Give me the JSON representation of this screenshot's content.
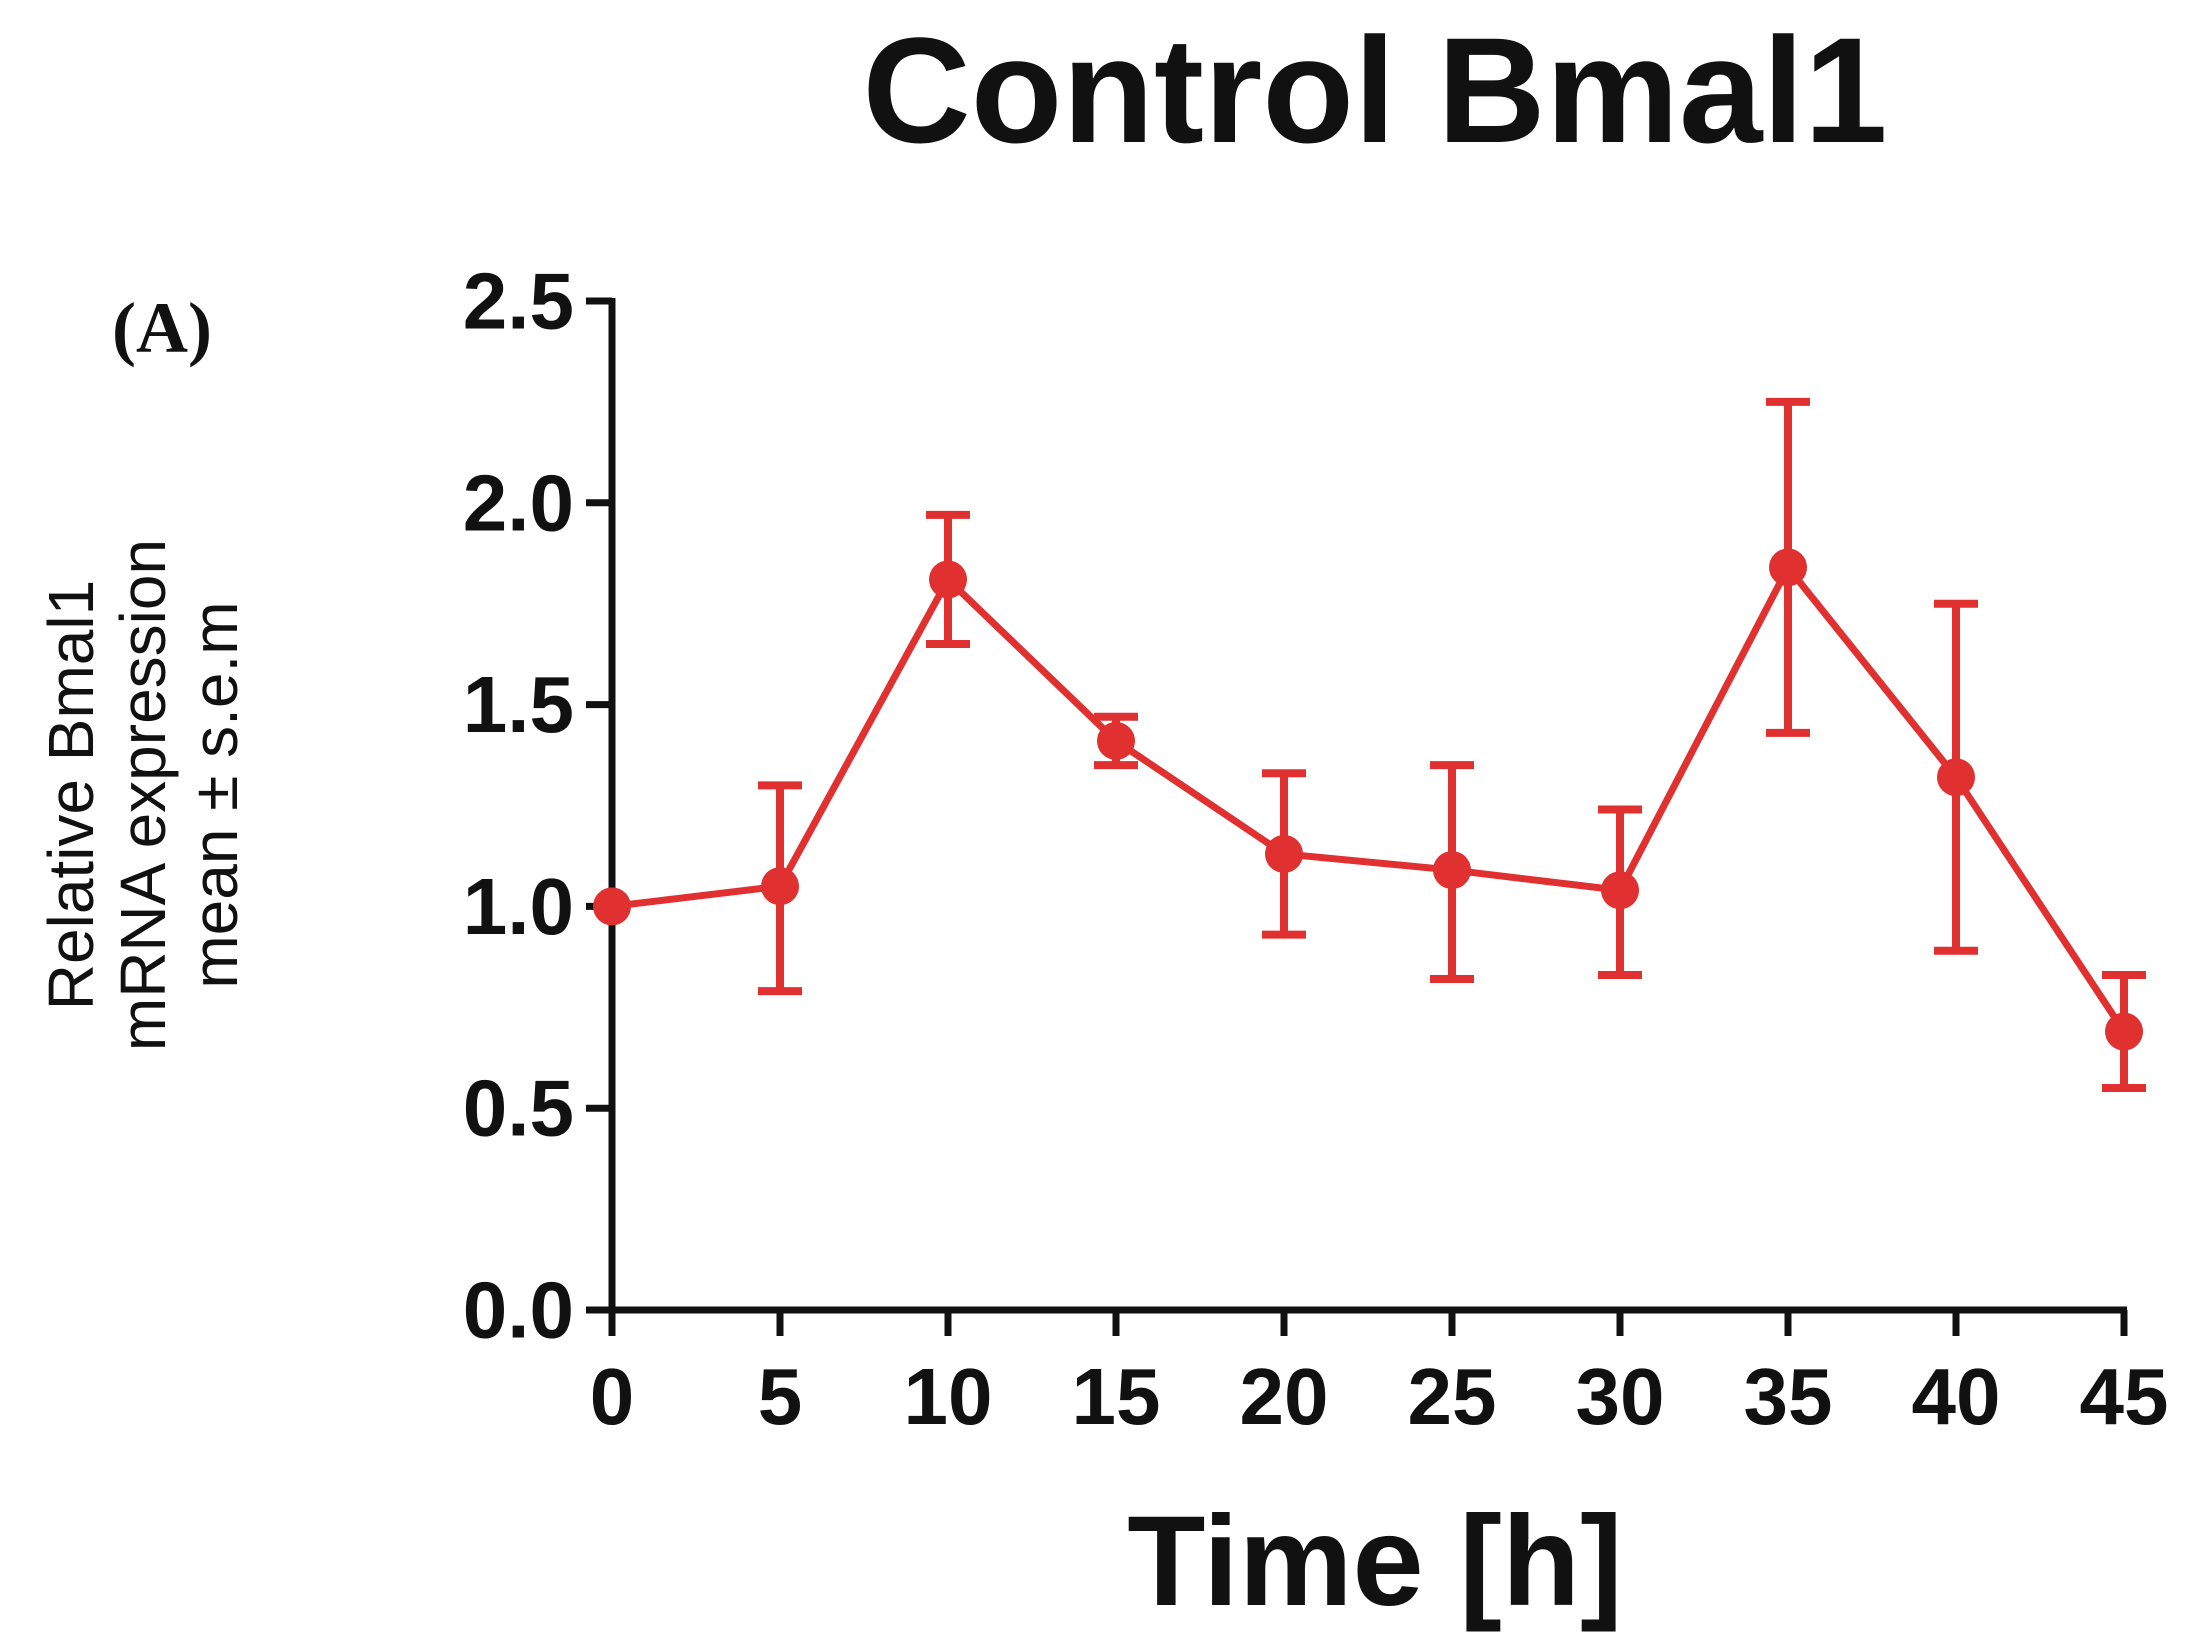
{
  "chart_data": {
    "type": "line",
    "title": "Control Bmal1",
    "panel_label": "(A)",
    "xlabel": "Time [h]",
    "ylabel_lines": [
      "Relative Bmal1",
      "mRNA expression",
      "mean ± s.e.m"
    ],
    "xlim": [
      0,
      45
    ],
    "ylim": [
      0,
      2.5
    ],
    "x_ticks": [
      0,
      5,
      10,
      15,
      20,
      25,
      30,
      35,
      40,
      45
    ],
    "x_tick_labels": [
      "0",
      "5",
      "10",
      "15",
      "20",
      "25",
      "30",
      "35",
      "40",
      "45"
    ],
    "y_ticks": [
      0,
      0.5,
      1.0,
      1.5,
      2.0,
      2.5
    ],
    "y_tick_labels": [
      "0.0",
      "0.5",
      "1.0",
      "1.5",
      "2.0",
      "2.5"
    ],
    "grid": false,
    "series": [
      {
        "name": "Control Bmal1",
        "color": "#e03030",
        "x": [
          0,
          5,
          10,
          15,
          20,
          25,
          30,
          35,
          40,
          45
        ],
        "y": [
          1.0,
          1.05,
          1.81,
          1.41,
          1.13,
          1.09,
          1.04,
          1.84,
          1.32,
          0.69
        ],
        "err_low": [
          1.0,
          0.79,
          1.65,
          1.35,
          0.93,
          0.82,
          0.83,
          1.43,
          0.89,
          0.55
        ],
        "err_high": [
          1.0,
          1.3,
          1.97,
          1.47,
          1.33,
          1.35,
          1.24,
          2.25,
          1.75,
          0.83
        ]
      }
    ]
  }
}
